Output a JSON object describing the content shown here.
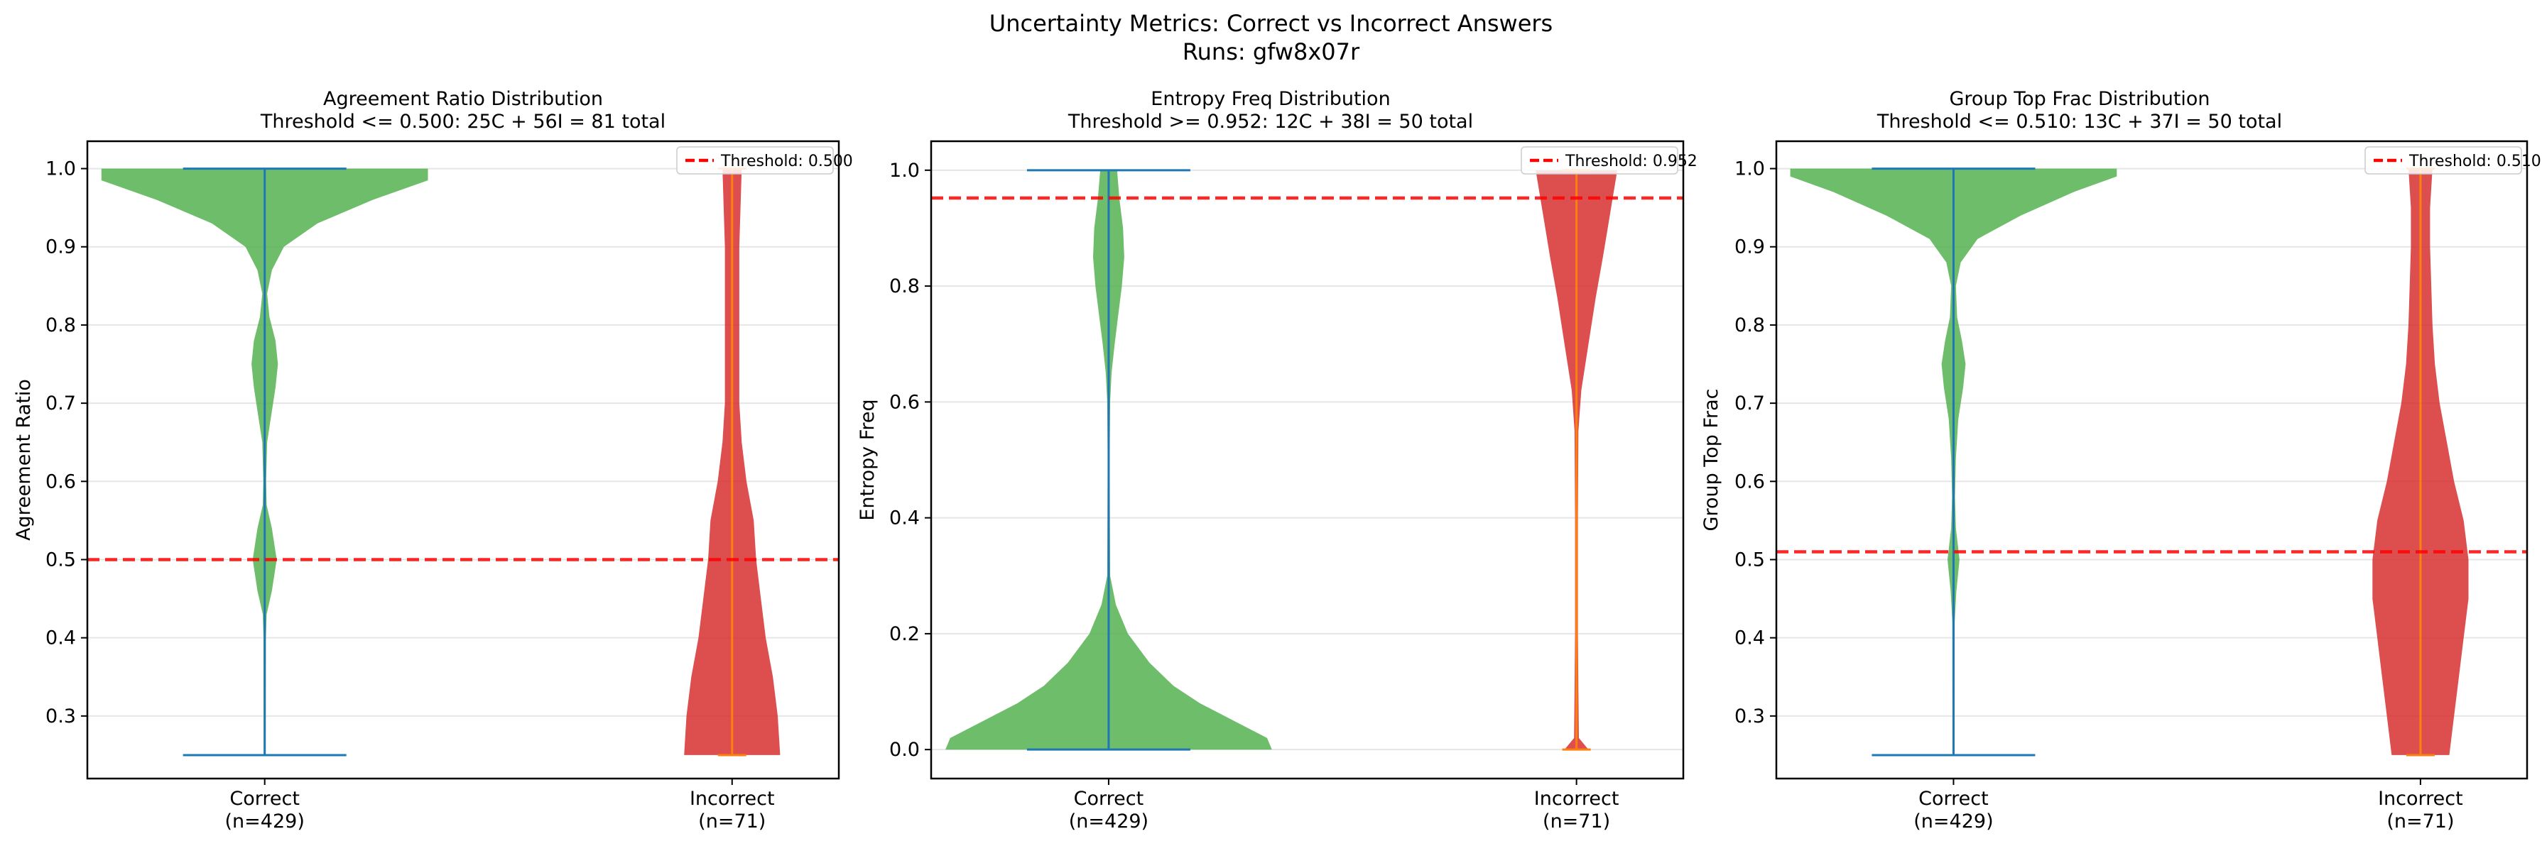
{
  "figure": {
    "suptitle_line1": "Uncertainty Metrics: Correct vs Incorrect Answers",
    "suptitle_line2": "Runs: gfw8x07r"
  },
  "colors": {
    "correct_fill": "#4daf4a",
    "incorrect_fill": "#d62728",
    "correct_line": "#1f77b4",
    "incorrect_line": "#ff7f0e",
    "threshold": "#ff0000",
    "grid": "#e6e6e6"
  },
  "chart_data": [
    {
      "type": "violin",
      "title": "Agreement Ratio Distribution",
      "subtitle": "Threshold <= 0.500: 25C + 56I = 81 total",
      "ylabel": "Agreement Ratio",
      "categories": [
        "Correct\n(n=429)",
        "Incorrect\n(n=71)"
      ],
      "ylim": [
        0.22,
        1.035
      ],
      "yticks": [
        0.3,
        0.4,
        0.5,
        0.6,
        0.7,
        0.8,
        0.9,
        1.0
      ],
      "ytick_labels": [
        "0.3",
        "0.4",
        "0.5",
        "0.6",
        "0.7",
        "0.8",
        "0.9",
        "1.0"
      ],
      "threshold": 0.5,
      "legend_label": "Threshold: 0.500",
      "legend_position": "top-right",
      "series": [
        {
          "name": "Correct",
          "n": 429,
          "min": 0.25,
          "max": 1.0,
          "extrema_caps": true,
          "profile": [
            [
              0.25,
              0.004
            ],
            [
              0.4,
              0.005
            ],
            [
              0.43,
              0.008
            ],
            [
              0.46,
              0.03
            ],
            [
              0.5,
              0.05
            ],
            [
              0.54,
              0.03
            ],
            [
              0.57,
              0.008
            ],
            [
              0.6,
              0.006
            ],
            [
              0.65,
              0.01
            ],
            [
              0.68,
              0.025
            ],
            [
              0.72,
              0.045
            ],
            [
              0.75,
              0.055
            ],
            [
              0.78,
              0.045
            ],
            [
              0.81,
              0.02
            ],
            [
              0.84,
              0.01
            ],
            [
              0.87,
              0.03
            ],
            [
              0.9,
              0.08
            ],
            [
              0.93,
              0.22
            ],
            [
              0.96,
              0.45
            ],
            [
              0.985,
              0.68
            ],
            [
              1.0,
              0.68
            ]
          ]
        },
        {
          "name": "Incorrect",
          "n": 71,
          "min": 0.25,
          "max": 1.0,
          "extrema_caps": false,
          "profile": [
            [
              0.25,
              0.2
            ],
            [
              0.3,
              0.19
            ],
            [
              0.35,
              0.17
            ],
            [
              0.4,
              0.14
            ],
            [
              0.45,
              0.12
            ],
            [
              0.5,
              0.1
            ],
            [
              0.55,
              0.09
            ],
            [
              0.6,
              0.06
            ],
            [
              0.65,
              0.04
            ],
            [
              0.7,
              0.03
            ],
            [
              0.8,
              0.03
            ],
            [
              0.9,
              0.03
            ],
            [
              0.95,
              0.035
            ],
            [
              1.0,
              0.04
            ]
          ]
        }
      ]
    },
    {
      "type": "violin",
      "title": "Entropy Freq Distribution",
      "subtitle": "Threshold >= 0.952: 12C + 38I = 50 total",
      "ylabel": "Entropy Freq",
      "categories": [
        "Correct\n(n=429)",
        "Incorrect\n(n=71)"
      ],
      "ylim": [
        -0.05,
        1.05
      ],
      "yticks": [
        0.0,
        0.2,
        0.4,
        0.6,
        0.8,
        1.0
      ],
      "ytick_labels": [
        "0.0",
        "0.2",
        "0.4",
        "0.6",
        "0.8",
        "1.0"
      ],
      "threshold": 0.952,
      "legend_label": "Threshold: 0.952",
      "legend_position": "top-right",
      "series": [
        {
          "name": "Correct",
          "n": 429,
          "min": 0.0,
          "max": 1.0,
          "extrema_caps": true,
          "profile": [
            [
              0.0,
              0.68
            ],
            [
              0.02,
              0.66
            ],
            [
              0.05,
              0.52
            ],
            [
              0.08,
              0.38
            ],
            [
              0.11,
              0.27
            ],
            [
              0.15,
              0.17
            ],
            [
              0.2,
              0.08
            ],
            [
              0.25,
              0.03
            ],
            [
              0.3,
              0.006
            ],
            [
              0.5,
              0.004
            ],
            [
              0.6,
              0.006
            ],
            [
              0.65,
              0.012
            ],
            [
              0.7,
              0.025
            ],
            [
              0.75,
              0.04
            ],
            [
              0.8,
              0.055
            ],
            [
              0.85,
              0.065
            ],
            [
              0.9,
              0.06
            ],
            [
              0.95,
              0.045
            ],
            [
              1.0,
              0.035
            ]
          ]
        },
        {
          "name": "Incorrect",
          "n": 71,
          "min": 0.0,
          "max": 1.0,
          "extrema_caps": false,
          "profile": [
            [
              0.0,
              0.05
            ],
            [
              0.02,
              0.01
            ],
            [
              0.1,
              0.008
            ],
            [
              0.2,
              0.006
            ],
            [
              0.4,
              0.006
            ],
            [
              0.55,
              0.008
            ],
            [
              0.62,
              0.02
            ],
            [
              0.7,
              0.05
            ],
            [
              0.78,
              0.08
            ],
            [
              0.85,
              0.11
            ],
            [
              0.9,
              0.13
            ],
            [
              0.95,
              0.15
            ],
            [
              1.0,
              0.17
            ]
          ]
        }
      ]
    },
    {
      "type": "violin",
      "title": "Group Top Frac Distribution",
      "subtitle": "Threshold <= 0.510: 13C + 37I = 50 total",
      "ylabel": "Group Top Frac",
      "categories": [
        "Correct\n(n=429)",
        "Incorrect\n(n=71)"
      ],
      "ylim": [
        0.22,
        1.035
      ],
      "yticks": [
        0.3,
        0.4,
        0.5,
        0.6,
        0.7,
        0.8,
        0.9,
        1.0
      ],
      "ytick_labels": [
        "0.3",
        "0.4",
        "0.5",
        "0.6",
        "0.7",
        "0.8",
        "0.9",
        "1.0"
      ],
      "threshold": 0.51,
      "legend_label": "Threshold: 0.510",
      "legend_position": "top-right",
      "series": [
        {
          "name": "Correct",
          "n": 429,
          "min": 0.25,
          "max": 1.0,
          "extrema_caps": true,
          "profile": [
            [
              0.25,
              0.004
            ],
            [
              0.42,
              0.005
            ],
            [
              0.46,
              0.012
            ],
            [
              0.5,
              0.025
            ],
            [
              0.54,
              0.01
            ],
            [
              0.58,
              0.006
            ],
            [
              0.63,
              0.01
            ],
            [
              0.68,
              0.02
            ],
            [
              0.72,
              0.04
            ],
            [
              0.75,
              0.05
            ],
            [
              0.78,
              0.035
            ],
            [
              0.81,
              0.015
            ],
            [
              0.85,
              0.01
            ],
            [
              0.88,
              0.03
            ],
            [
              0.91,
              0.1
            ],
            [
              0.94,
              0.28
            ],
            [
              0.97,
              0.5
            ],
            [
              0.99,
              0.68
            ],
            [
              1.0,
              0.68
            ]
          ]
        },
        {
          "name": "Incorrect",
          "n": 71,
          "min": 0.25,
          "max": 1.0,
          "extrema_caps": false,
          "profile": [
            [
              0.25,
              0.12
            ],
            [
              0.3,
              0.14
            ],
            [
              0.35,
              0.16
            ],
            [
              0.4,
              0.18
            ],
            [
              0.45,
              0.2
            ],
            [
              0.5,
              0.2
            ],
            [
              0.55,
              0.18
            ],
            [
              0.6,
              0.14
            ],
            [
              0.65,
              0.11
            ],
            [
              0.7,
              0.08
            ],
            [
              0.75,
              0.06
            ],
            [
              0.8,
              0.05
            ],
            [
              0.85,
              0.045
            ],
            [
              0.9,
              0.04
            ],
            [
              0.95,
              0.04
            ],
            [
              1.0,
              0.05
            ]
          ]
        }
      ]
    }
  ]
}
